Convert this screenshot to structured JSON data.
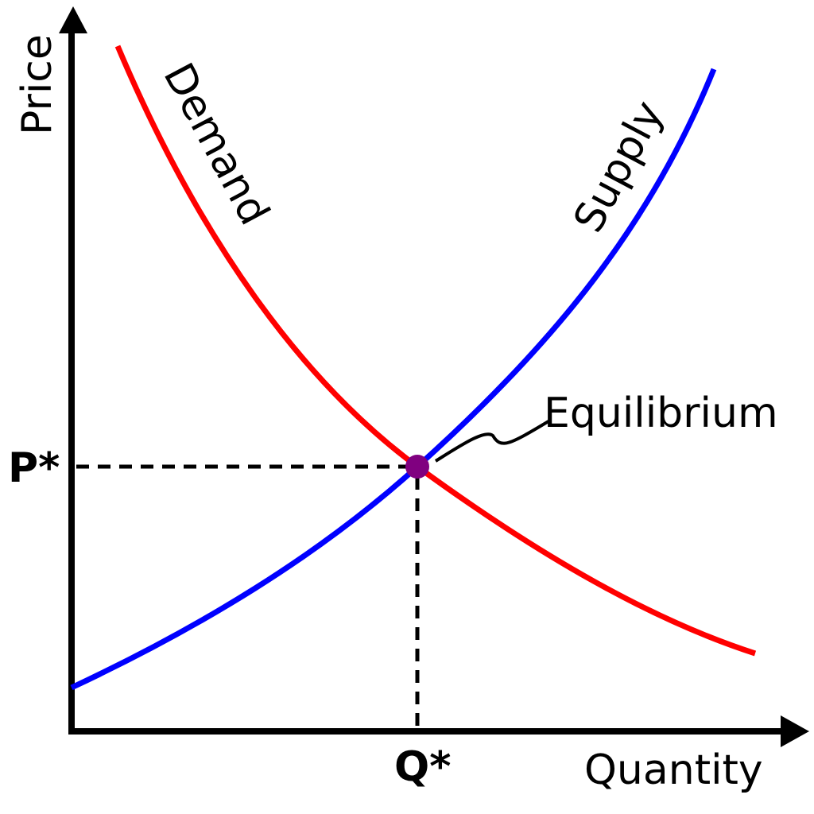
{
  "axes": {
    "y_label": "Price",
    "x_label": "Quantity"
  },
  "curves": {
    "demand": "Demand",
    "supply": "Supply"
  },
  "equilibrium": {
    "label": "Equilibrium",
    "price": "P*",
    "quantity": "Q*"
  }
}
